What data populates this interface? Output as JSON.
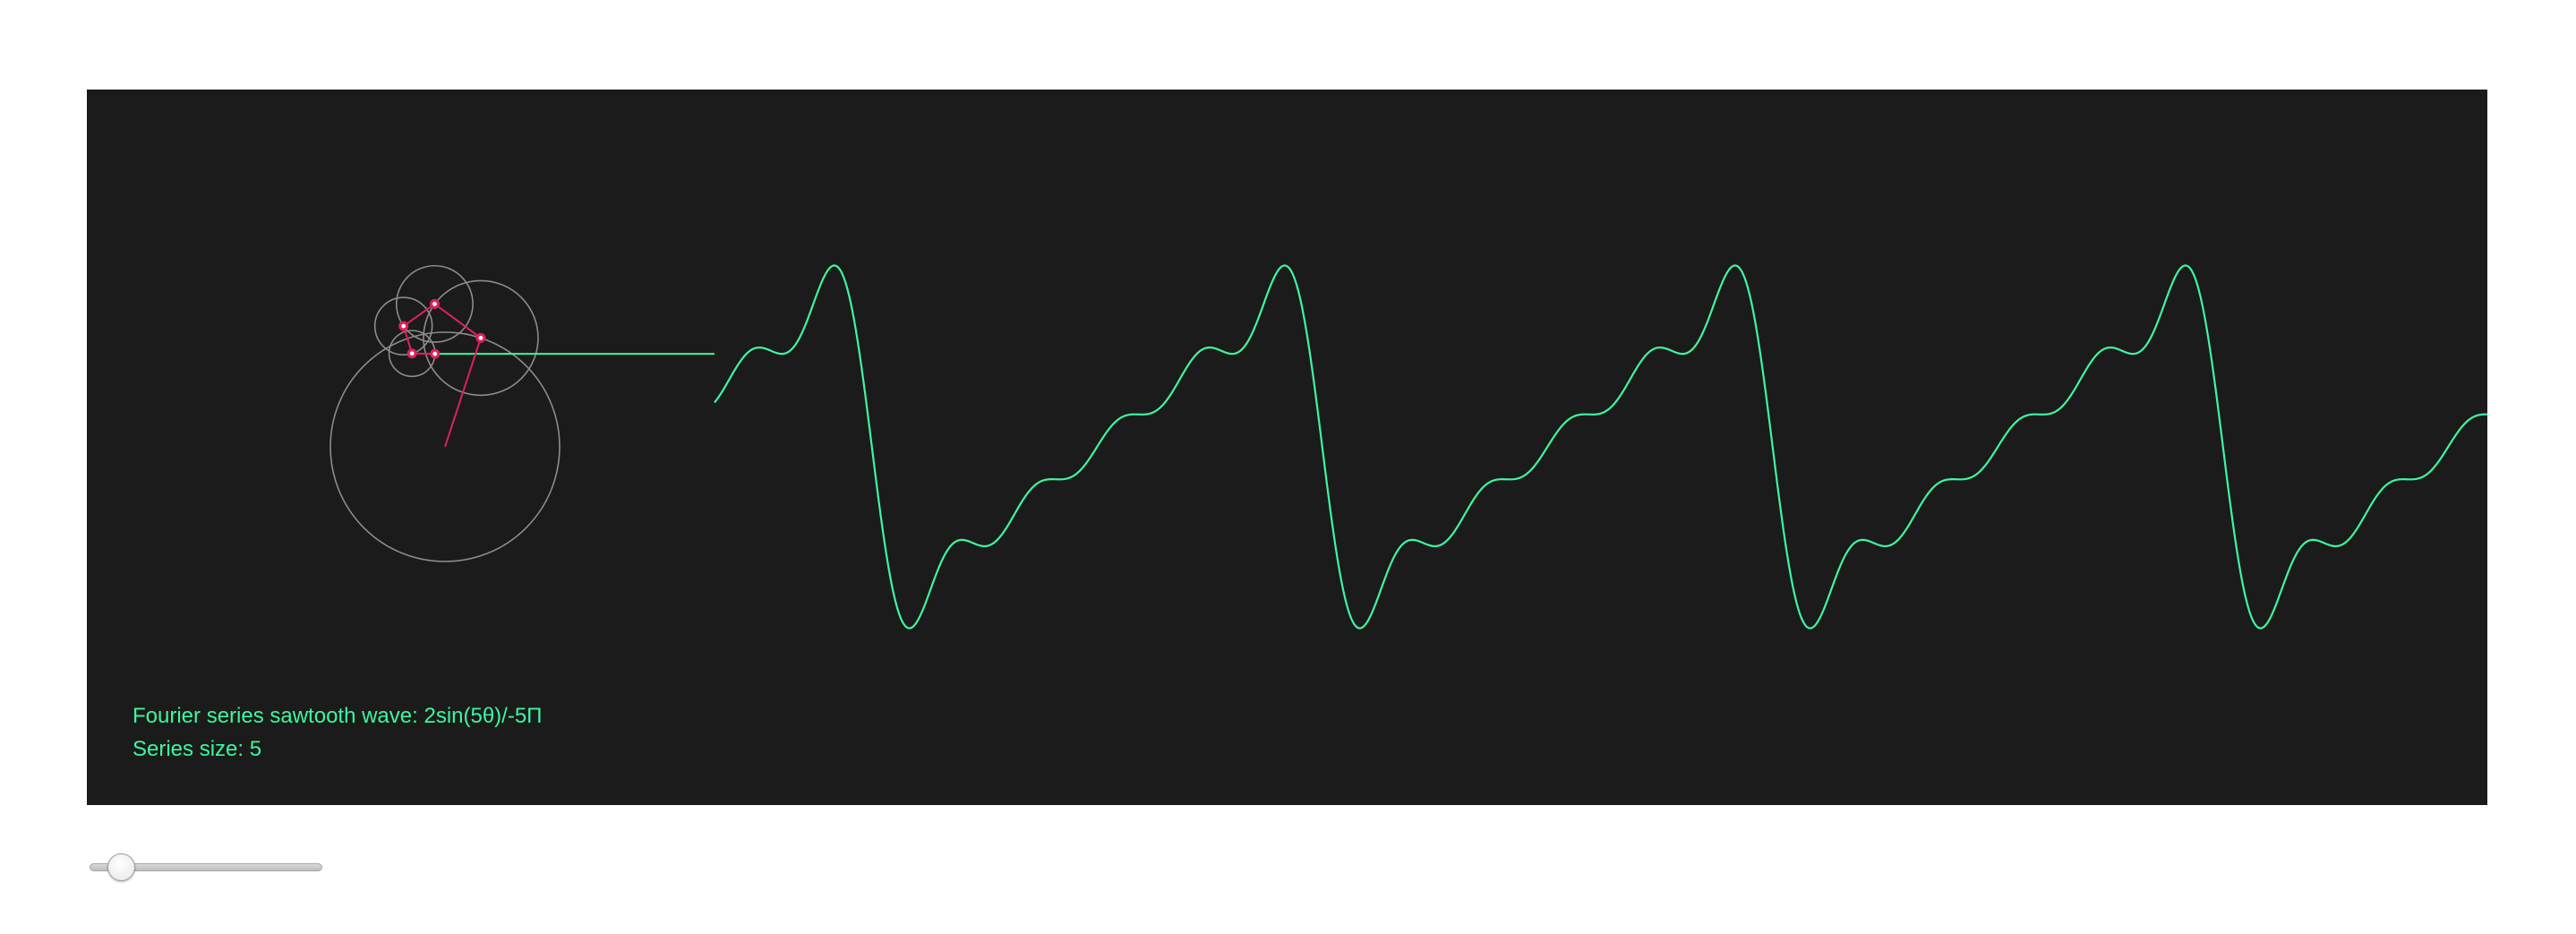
{
  "caption": {
    "formula_text": "Fourier series sawtooth wave: 2sin(5θ)/-5Π",
    "size_text": "Series size: 5"
  },
  "series": {
    "size": 5,
    "min": 1,
    "max": 50
  },
  "colors": {
    "background": "#1b1b1b",
    "wave": "#3ef6a0",
    "caption": "#3ef6a0",
    "circle": "#8c8c8c",
    "arm": "#e0205a",
    "joint": "#e0205a",
    "joint_center": "#ffffff"
  },
  "icons": {
    "joint": "pink-dot"
  }
}
